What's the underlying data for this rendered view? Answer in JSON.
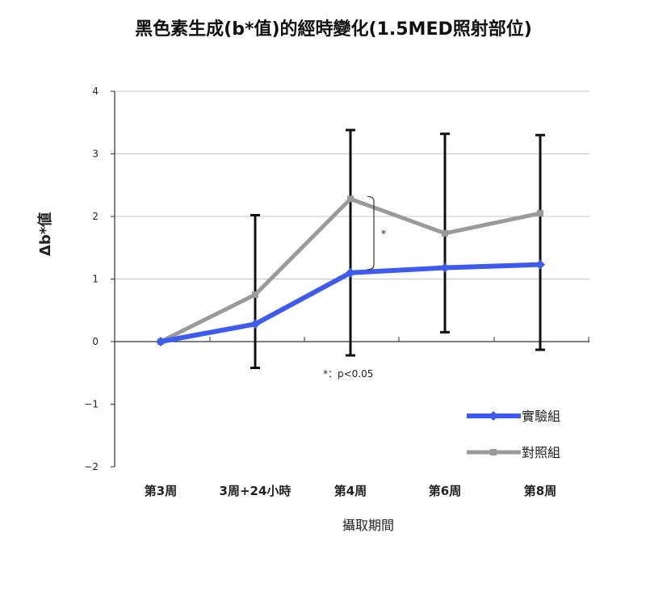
{
  "chart_data": {
    "type": "line",
    "title": "黑色素生成(b*值)的經時變化(1.5MED照射部位)",
    "xlabel": "攝取期間",
    "ylabel": "Δb*値",
    "categories": [
      "第3周",
      "3周+24小時",
      "第4周",
      "第6周",
      "第8周"
    ],
    "ylim": [
      -2,
      4
    ],
    "yticks": [
      "4",
      "3",
      "2",
      "1",
      "0",
      "−1",
      "−2"
    ],
    "grid": true,
    "legend_position": "bottom-right",
    "series": [
      {
        "name": "實驗組",
        "color": "#3d5bf0",
        "values": [
          0,
          0.28,
          1.1,
          1.18,
          1.23
        ]
      },
      {
        "name": "對照組",
        "color": "#9a9a9a",
        "values": [
          0,
          0.75,
          2.28,
          1.73,
          2.05
        ],
        "error_upper": [
          null,
          2.02,
          3.38,
          3.32,
          3.3
        ],
        "error_lower": [
          null,
          -0.42,
          -0.22,
          0.15,
          -0.13
        ]
      }
    ],
    "significance": {
      "between_index": 2,
      "mark": "*"
    },
    "annotation": "*：p<0.05"
  }
}
